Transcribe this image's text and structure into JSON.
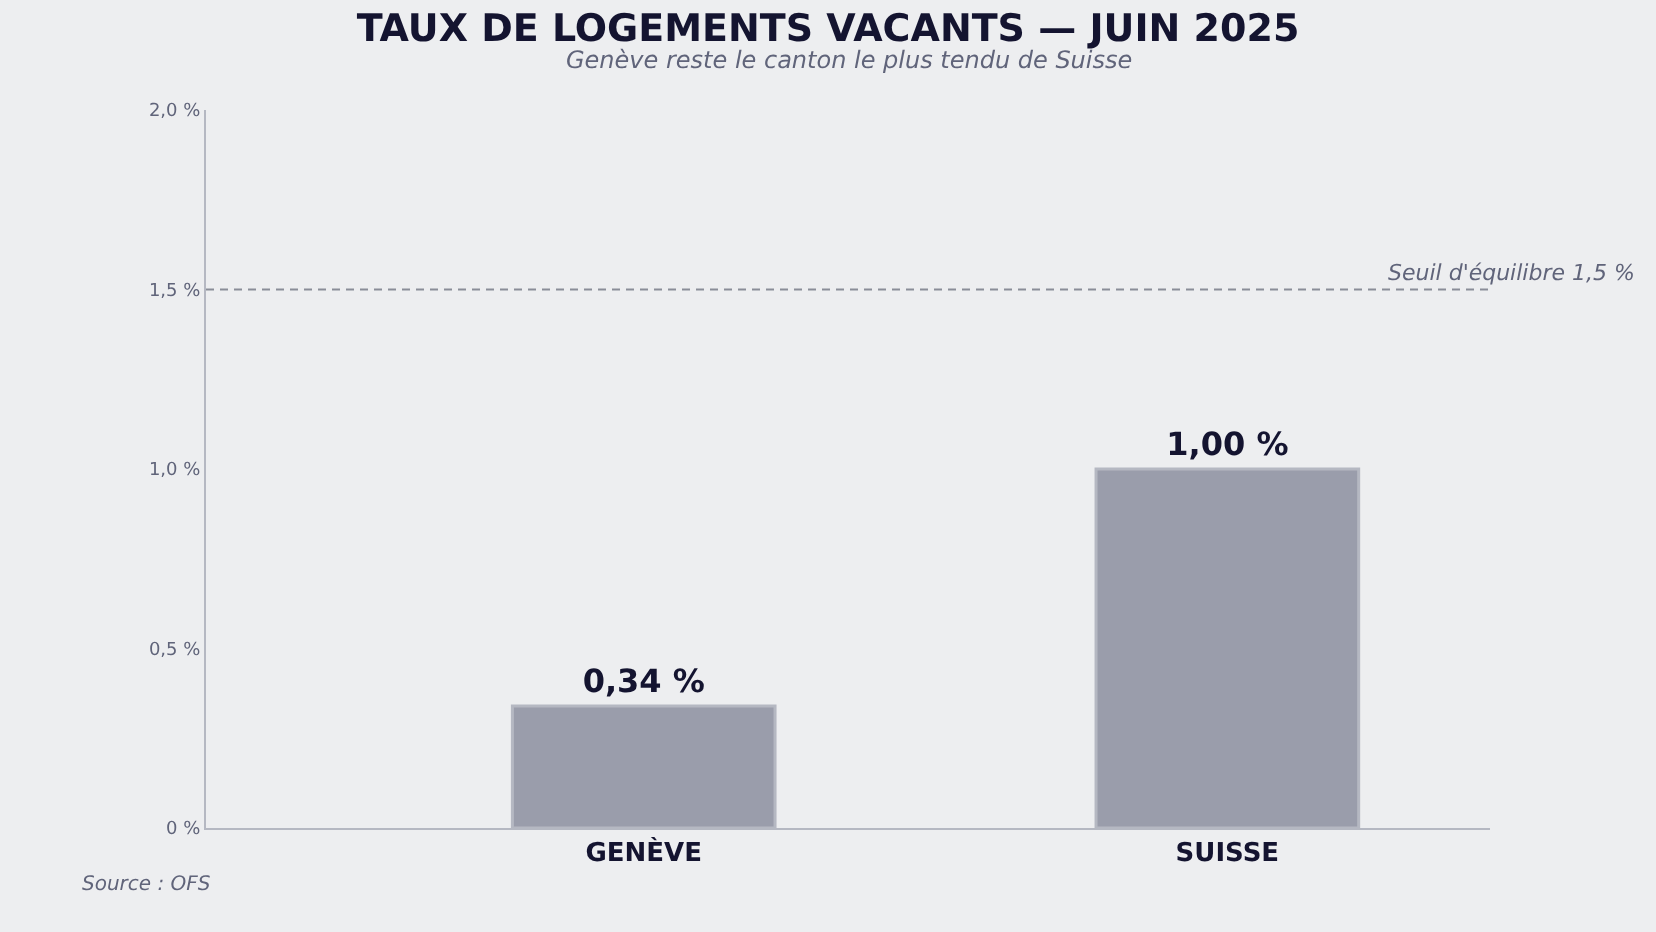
{
  "chart_data": {
    "type": "bar",
    "title": "TAUX DE LOGEMENTS VACANTS — JUIN 2025",
    "subtitle": "Genève reste le canton le plus tendu de Suisse",
    "categories": [
      "GENÈVE",
      "SUISSE"
    ],
    "values": [
      0.34,
      1.0
    ],
    "value_labels": [
      "0,34 %",
      "1,00 %"
    ],
    "color": "#9a9dab",
    "ylim": [
      0,
      2
    ],
    "yticks": [
      {
        "value": 0,
        "label": "0 %"
      },
      {
        "value": 0.5,
        "label": "0,5 %"
      },
      {
        "value": 1,
        "label": "1,0 %"
      },
      {
        "value": 1.5,
        "label": "1,5 %"
      },
      {
        "value": 2,
        "label": "2,0 %"
      }
    ],
    "grid": false,
    "legend": false,
    "ref_lines": [
      {
        "axis": "y",
        "value": 1.5,
        "label": "Seuil d'équilibre 1,5 %",
        "color": "#8a8d98",
        "line_style": "dashed"
      }
    ],
    "annotations": [
      "Source : OFS"
    ]
  }
}
